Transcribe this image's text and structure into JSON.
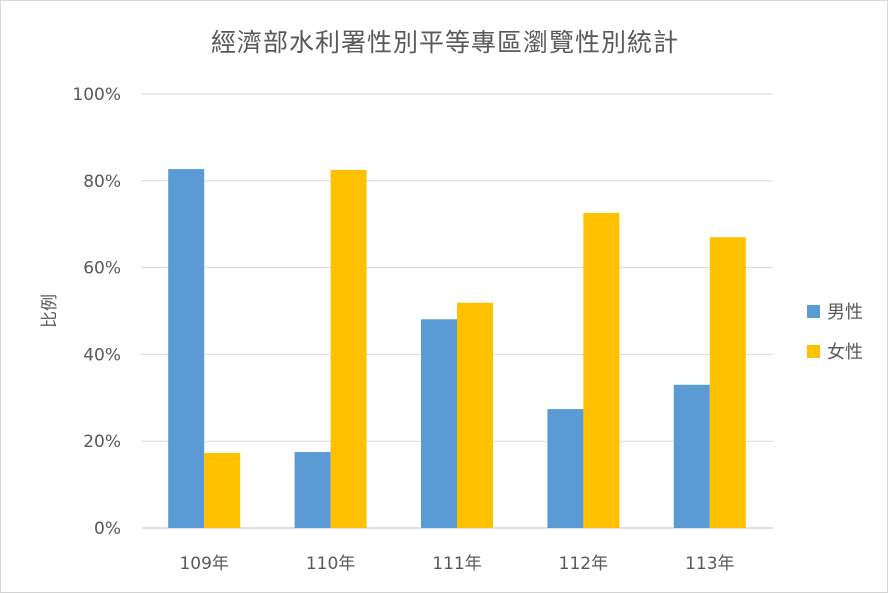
{
  "chart_data": {
    "type": "bar",
    "title": "經濟部水利署性別平等專區瀏覽性別統計",
    "xlabel": "",
    "ylabel": "比例",
    "categories": [
      "109年",
      "110年",
      "111年",
      "112年",
      "113年"
    ],
    "series": [
      {
        "name": "男性",
        "color": "#5b9bd5",
        "values": [
          82.7,
          17.5,
          48.1,
          27.4,
          33.0
        ]
      },
      {
        "name": "女性",
        "color": "#ffc000",
        "values": [
          17.3,
          82.5,
          51.9,
          72.6,
          67.0
        ]
      }
    ],
    "ylim": [
      0,
      100
    ],
    "yticks": [
      "0%",
      "20%",
      "40%",
      "60%",
      "80%",
      "100%"
    ],
    "ytick_values": [
      0,
      20,
      40,
      60,
      80,
      100
    ],
    "grid": true,
    "legend_position": "right"
  }
}
